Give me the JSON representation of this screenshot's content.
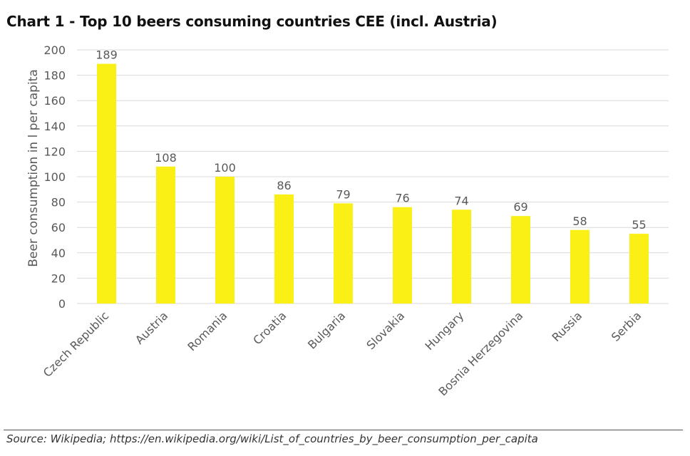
{
  "title": "Chart 1 - Top 10 beers consuming countries CEE (incl. Austria)",
  "source": "Source: Wikipedia; https://en.wikipedia.org/wiki/List_of_countries_by_beer_consumption_per_capita",
  "colors": {
    "bar": "#FAF016",
    "grid": "#D9D9D9",
    "text": "#595959"
  },
  "chart_data": {
    "type": "bar",
    "title": "Chart 1 - Top 10 beers consuming countries CEE (incl. Austria)",
    "xlabel": "",
    "ylabel": "Beer consumption in l per capita",
    "categories": [
      "Czech Republic",
      "Austria",
      "Romania",
      "Croatia",
      "Bulgaria",
      "Slovakia",
      "Hungary",
      "Bosnia Herzegovina",
      "Russia",
      "Serbia"
    ],
    "values": [
      189,
      108,
      100,
      86,
      79,
      76,
      74,
      69,
      58,
      55
    ],
    "ylim": [
      0,
      200
    ],
    "yticks": [
      0,
      20,
      40,
      60,
      80,
      100,
      120,
      140,
      160,
      180,
      200
    ],
    "grid": true,
    "legend": "none",
    "data_labels": true
  }
}
